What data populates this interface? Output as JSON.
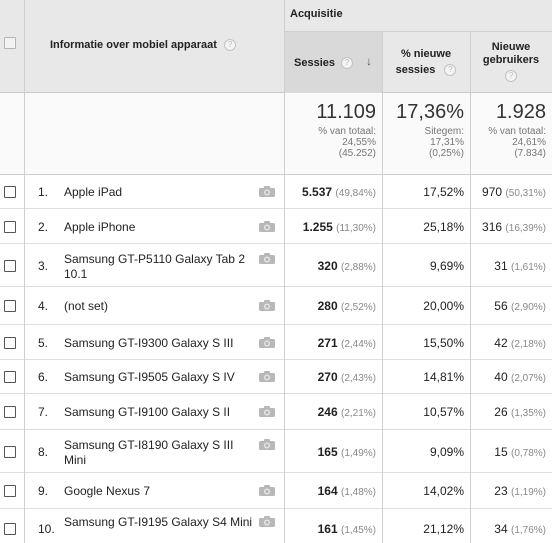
{
  "header": {
    "group_label": "Acquisitie",
    "device_col_label": "Informatie over mobiel apparaat",
    "col_sessions": "Sessies",
    "col_new_pct_line1": "% nieuwe",
    "col_new_pct_line2": "sessies",
    "col_new_users_line1": "Nieuwe",
    "col_new_users_line2": "gebruikers",
    "help_glyph": "?",
    "sort_glyph": "↓"
  },
  "totals": {
    "sessions": {
      "value": "11.109",
      "l1": "% van totaal:",
      "l2": "24,55%",
      "l3": "(45.252)"
    },
    "new_pct": {
      "value": "17,36%",
      "l1": "Sitegem:",
      "l2": "17,31%",
      "l3": "(0,25%)"
    },
    "new_users": {
      "value": "1.928",
      "l1": "% van totaal:",
      "l2": "24,61%",
      "l3": "(7.834)"
    }
  },
  "rows": [
    {
      "num": "1.",
      "device": "Apple iPad",
      "sessions": "5.537",
      "sessions_pct": "(49,84%)",
      "new_pct": "17,52%",
      "new_users": "970",
      "new_users_pct": "(50,31%)"
    },
    {
      "num": "2.",
      "device": "Apple iPhone",
      "sessions": "1.255",
      "sessions_pct": "(11,30%)",
      "new_pct": "25,18%",
      "new_users": "316",
      "new_users_pct": "(16,39%)"
    },
    {
      "num": "3.",
      "device": "Samsung GT-P5110 Galaxy Tab 2 10.1",
      "sessions": "320",
      "sessions_pct": "(2,88%)",
      "new_pct": "9,69%",
      "new_users": "31",
      "new_users_pct": "(1,61%)"
    },
    {
      "num": "4.",
      "device": "(not set)",
      "sessions": "280",
      "sessions_pct": "(2,52%)",
      "new_pct": "20,00%",
      "new_users": "56",
      "new_users_pct": "(2,90%)"
    },
    {
      "num": "5.",
      "device": "Samsung GT-I9300 Galaxy S III",
      "sessions": "271",
      "sessions_pct": "(2,44%)",
      "new_pct": "15,50%",
      "new_users": "42",
      "new_users_pct": "(2,18%)"
    },
    {
      "num": "6.",
      "device": "Samsung GT-I9505 Galaxy S IV",
      "sessions": "270",
      "sessions_pct": "(2,43%)",
      "new_pct": "14,81%",
      "new_users": "40",
      "new_users_pct": "(2,07%)"
    },
    {
      "num": "7.",
      "device": "Samsung GT-I9100 Galaxy S II",
      "sessions": "246",
      "sessions_pct": "(2,21%)",
      "new_pct": "10,57%",
      "new_users": "26",
      "new_users_pct": "(1,35%)"
    },
    {
      "num": "8.",
      "device": "Samsung GT-I8190 Galaxy S III Mini",
      "sessions": "165",
      "sessions_pct": "(1,49%)",
      "new_pct": "9,09%",
      "new_users": "15",
      "new_users_pct": "(0,78%)"
    },
    {
      "num": "9.",
      "device": "Google Nexus 7",
      "sessions": "164",
      "sessions_pct": "(1,48%)",
      "new_pct": "14,02%",
      "new_users": "23",
      "new_users_pct": "(1,19%)"
    },
    {
      "num": "10.",
      "device": "Samsung GT-I9195 Galaxy S4 Mini",
      "sessions": "161",
      "sessions_pct": "(1,45%)",
      "new_pct": "21,12%",
      "new_users": "34",
      "new_users_pct": "(1,76%)"
    }
  ]
}
